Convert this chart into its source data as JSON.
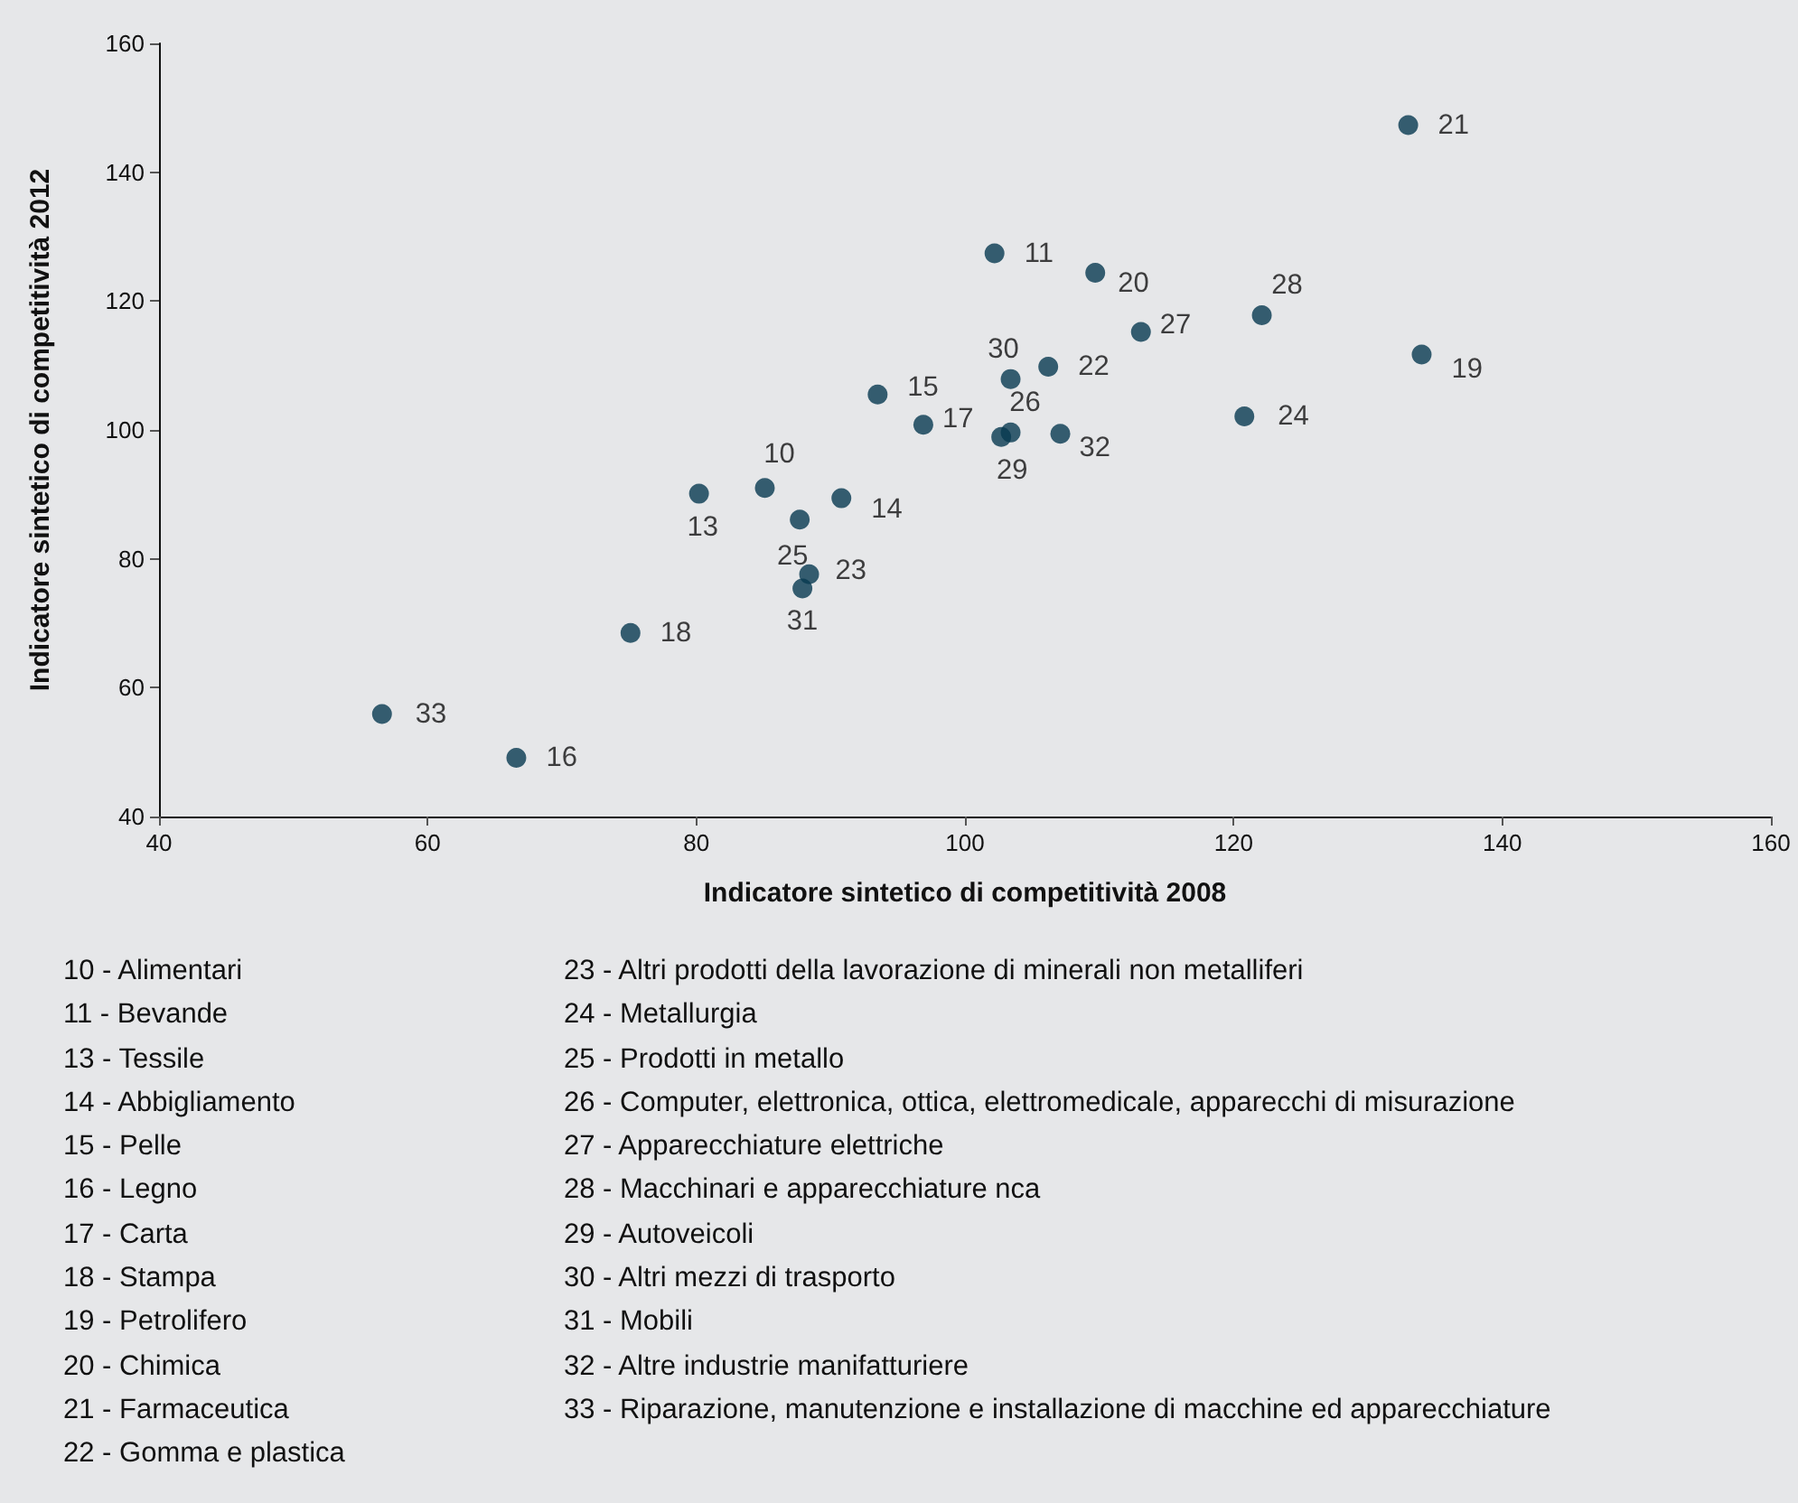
{
  "chart_data": {
    "type": "scatter",
    "xlabel": "Indicatore sintetico di competitività 2008",
    "ylabel": "Indicatore sintetico di competitività 2012",
    "series": [
      {
        "name": "10",
        "color": "#083a50",
        "x": [
          85.1
        ],
        "values": [
          91.0
        ]
      },
      {
        "name": "11",
        "color": "#083a50",
        "x": [
          102.2
        ],
        "values": [
          127.4
        ]
      },
      {
        "name": "13",
        "color": "#083a50",
        "x": [
          80.2
        ],
        "values": [
          90.1
        ]
      },
      {
        "name": "14",
        "color": "#083a50",
        "x": [
          90.8
        ],
        "values": [
          89.4
        ]
      },
      {
        "name": "15",
        "color": "#083a50",
        "x": [
          93.5
        ],
        "values": [
          105.5
        ]
      },
      {
        "name": "16",
        "color": "#083a50",
        "x": [
          66.6
        ],
        "values": [
          49.1
        ]
      },
      {
        "name": "17",
        "color": "#083a50",
        "x": [
          96.9
        ],
        "values": [
          100.8
        ]
      },
      {
        "name": "18",
        "color": "#083a50",
        "x": [
          75.1
        ],
        "values": [
          68.5
        ]
      },
      {
        "name": "19",
        "color": "#083a50",
        "x": [
          134.0
        ],
        "values": [
          111.7
        ]
      },
      {
        "name": "20",
        "color": "#083a50",
        "x": [
          109.7
        ],
        "values": [
          124.4
        ]
      },
      {
        "name": "21",
        "color": "#083a50",
        "x": [
          133.0
        ],
        "values": [
          147.3
        ]
      },
      {
        "name": "22",
        "color": "#083a50",
        "x": [
          106.2
        ],
        "values": [
          109.8
        ]
      },
      {
        "name": "23",
        "color": "#083a50",
        "x": [
          88.4
        ],
        "values": [
          77.6
        ]
      },
      {
        "name": "24",
        "color": "#083a50",
        "x": [
          120.8
        ],
        "values": [
          102.1
        ]
      },
      {
        "name": "25",
        "color": "#083a50",
        "x": [
          87.7
        ],
        "values": [
          86.1
        ]
      },
      {
        "name": "26",
        "color": "#083a50",
        "x": [
          103.4
        ],
        "values": [
          99.6
        ]
      },
      {
        "name": "27",
        "color": "#083a50",
        "x": [
          113.1
        ],
        "values": [
          115.2
        ]
      },
      {
        "name": "28",
        "color": "#083a50",
        "x": [
          122.1
        ],
        "values": [
          117.8
        ]
      },
      {
        "name": "29",
        "color": "#083a50",
        "x": [
          102.7
        ],
        "values": [
          98.9
        ]
      },
      {
        "name": "30",
        "color": "#083a50",
        "x": [
          103.4
        ],
        "values": [
          107.9
        ]
      },
      {
        "name": "31",
        "color": "#083a50",
        "x": [
          87.9
        ],
        "values": [
          75.4
        ]
      },
      {
        "name": "32",
        "color": "#083a50",
        "x": [
          107.1
        ],
        "values": [
          99.4
        ]
      },
      {
        "name": "33",
        "color": "#083a50",
        "x": [
          56.6
        ],
        "values": [
          55.9
        ]
      }
    ],
    "marker": "circle",
    "grid": false,
    "xlim": [
      40,
      160
    ],
    "xticks": [
      40,
      60,
      80,
      100,
      120,
      140,
      160
    ],
    "ylim": [
      40,
      160
    ],
    "yticks": [
      40,
      60,
      80,
      100,
      120,
      140,
      160
    ],
    "annotations": [
      "10 - Alimentari",
      "11 - Bevande",
      "13 - Tessile",
      "14 - Abbigliamento",
      "15 - Pelle",
      "16 - Legno",
      "17 - Carta",
      "18 - Stampa",
      "19 - Petrolifero",
      "20 - Chimica",
      "21 - Farmaceutica",
      "22 - Gomma e plastica",
      "23 - Altri prodotti della lavorazione di minerali non metalliferi",
      "24 - Metallurgia",
      "25 - Prodotti in metallo",
      "26 - Computer, elettronica, ottica, elettromedicale, apparecchi di misurazione",
      "27 - Apparecchiature elettriche",
      "28 - Macchinari e apparecchiature nca",
      "29 - Autoveicoli",
      "30 - Altri mezzi di trasporto",
      "31 - Mobili",
      "32 - Altre industrie manifatturiere",
      "33 - Riparazione, manutenzione e installazione di macchine ed apparecchiature"
    ]
  }
}
